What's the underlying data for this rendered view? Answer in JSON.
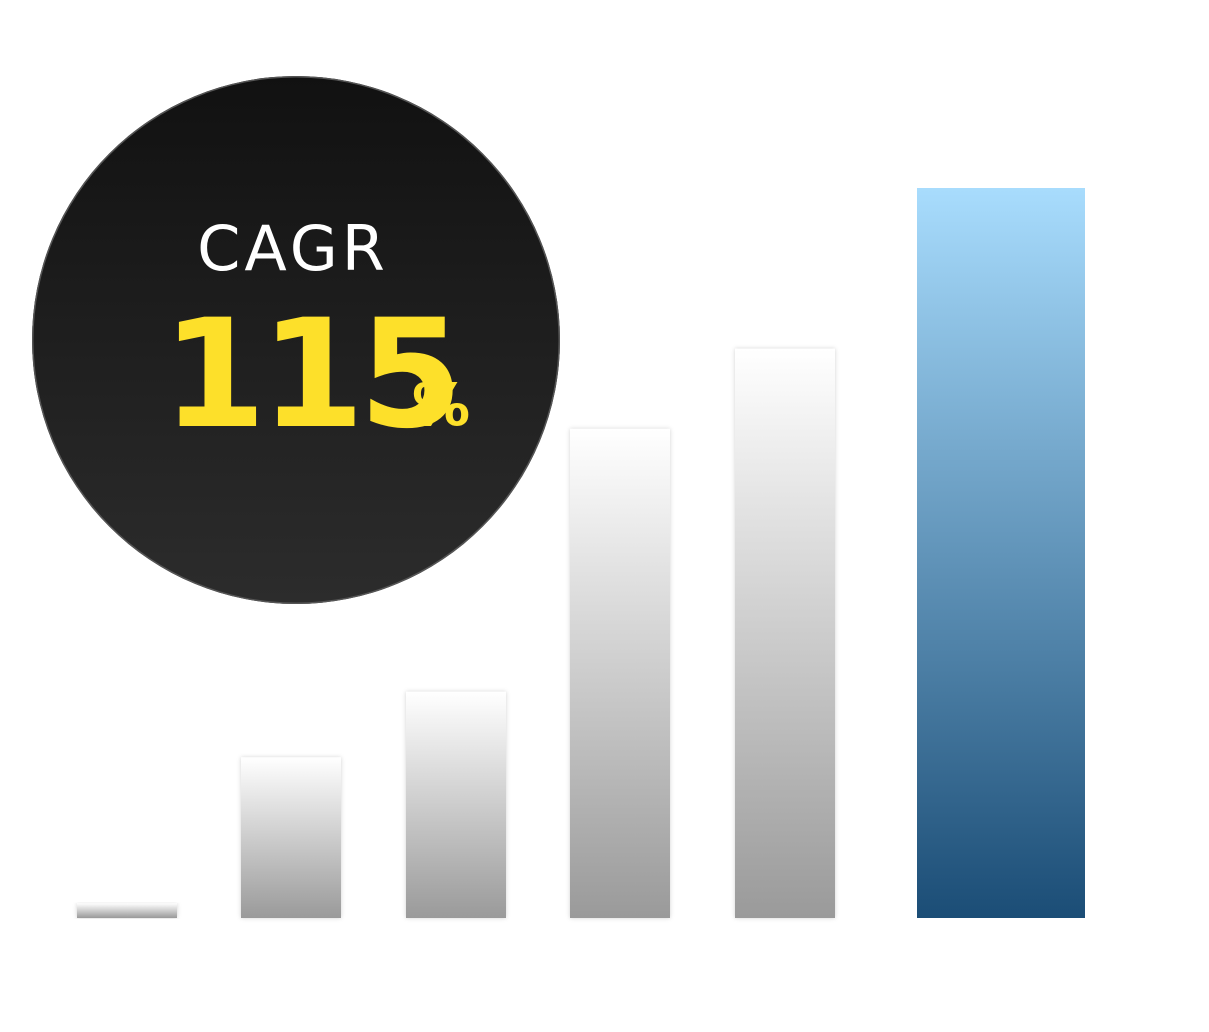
{
  "badge": {
    "label": "CAGR",
    "value": "115",
    "unit": "%"
  },
  "chart_data": {
    "type": "bar",
    "categories": [
      "",
      "",
      "",
      "",
      "",
      ""
    ],
    "values": [
      2,
      22,
      31,
      67,
      78,
      100
    ],
    "highlight_index": 5,
    "ylim": [
      0,
      100
    ],
    "grid": false,
    "colors": {
      "bar_top": "#ffffff",
      "bar_bottom": "#9a9a9a",
      "highlight_top": "#a8dcfd",
      "highlight_bottom": "#1b4d76"
    }
  }
}
